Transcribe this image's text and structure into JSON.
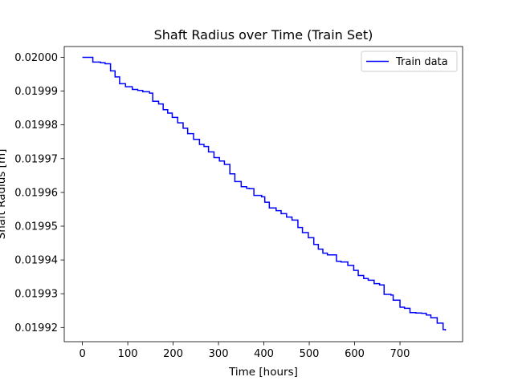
{
  "chart_data": {
    "type": "line",
    "title": "Shaft Radius over Time (Train Set)",
    "xlabel": "Time [hours]",
    "ylabel": "Shaft Radius [m]",
    "xlim": [
      -40,
      838
    ],
    "ylim": [
      0.0199158,
      0.0200032
    ],
    "xticks": [
      0,
      100,
      200,
      300,
      400,
      500,
      600,
      700
    ],
    "yticks": [
      0.01992,
      0.01993,
      0.01994,
      0.01995,
      0.01996,
      0.01997,
      0.01998,
      0.01999,
      0.02
    ],
    "ytick_labels": [
      "0.01992",
      "0.01993",
      "0.01994",
      "0.01995",
      "0.01996",
      "0.01997",
      "0.01998",
      "0.01999",
      "0.02000"
    ],
    "grid": false,
    "legend_position": "upper right",
    "series": [
      {
        "name": "Train data",
        "color": "#0000ff",
        "step": true,
        "x": [
          0,
          10,
          23,
          40,
          50,
          62,
          72,
          82,
          95,
          110,
          122,
          133,
          148,
          155,
          168,
          178,
          188,
          198,
          210,
          222,
          232,
          245,
          258,
          268,
          278,
          290,
          302,
          313,
          325,
          336,
          350,
          362,
          368,
          378,
          395,
          402,
          412,
          427,
          438,
          450,
          462,
          475,
          485,
          498,
          510,
          520,
          530,
          540,
          560,
          570,
          585,
          598,
          608,
          620,
          630,
          643,
          655,
          665,
          680,
          685,
          700,
          710,
          722,
          735,
          748,
          758,
          768,
          782,
          795,
          800
        ],
        "y": [
          0.02,
          0.02,
          0.0199986,
          0.0199984,
          0.0199981,
          0.019996,
          0.0199942,
          0.0199922,
          0.0199913,
          0.0199905,
          0.0199902,
          0.0199898,
          0.0199894,
          0.019987,
          0.0199862,
          0.0199845,
          0.0199835,
          0.0199822,
          0.0199806,
          0.019979,
          0.0199774,
          0.0199757,
          0.0199742,
          0.0199736,
          0.019972,
          0.0199703,
          0.0199693,
          0.0199683,
          0.0199655,
          0.0199632,
          0.0199617,
          0.0199612,
          0.0199611,
          0.0199591,
          0.0199587,
          0.0199571,
          0.0199554,
          0.0199546,
          0.0199537,
          0.0199527,
          0.0199518,
          0.0199496,
          0.0199481,
          0.0199466,
          0.0199446,
          0.0199432,
          0.019942,
          0.0199415,
          0.0199396,
          0.0199394,
          0.0199384,
          0.0199369,
          0.0199354,
          0.0199345,
          0.019934,
          0.019933,
          0.0199326,
          0.0199298,
          0.0199296,
          0.0199281,
          0.019926,
          0.0199257,
          0.0199244,
          0.0199243,
          0.0199242,
          0.0199237,
          0.0199229,
          0.0199213,
          0.0199194,
          0.0199191
        ]
      }
    ]
  }
}
